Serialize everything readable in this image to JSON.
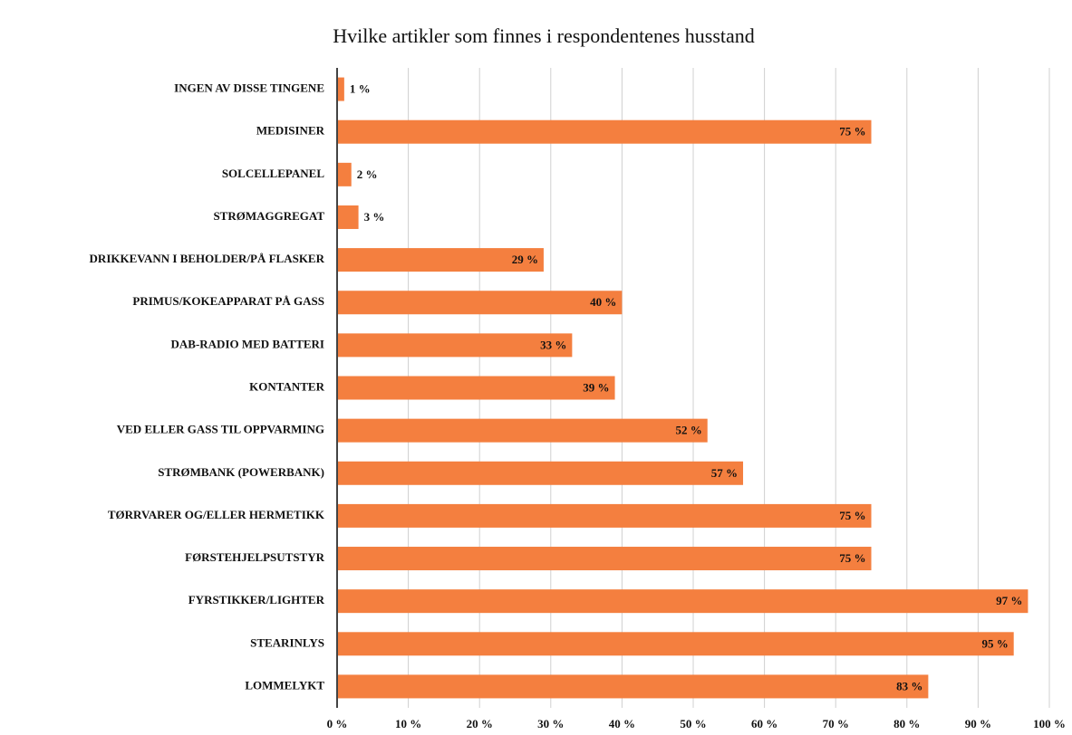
{
  "chart_data": {
    "type": "bar",
    "orientation": "horizontal",
    "title": "Hvilke artikler som finnes i respondentenes husstand",
    "categories": [
      "INGEN AV DISSE TINGENE",
      "MEDISINER",
      "SOLCELLEPANEL",
      "STRØMAGGREGAT",
      "DRIKKEVANN I BEHOLDER/PÅ FLASKER",
      "PRIMUS/KOKEAPPARAT PÅ GASS",
      "DAB-RADIO MED BATTERI",
      "KONTANTER",
      "VED ELLER GASS TIL OPPVARMING",
      "STRØMBANK (POWERBANK)",
      "TØRRVARER OG/ELLER HERMETIKK",
      "FØRSTEHJELPSUTSTYR",
      "FYRSTIKKER/LIGHTER",
      "STEARINLYS",
      "LOMMELYKT"
    ],
    "values": [
      1,
      75,
      2,
      3,
      29,
      40,
      33,
      39,
      52,
      57,
      75,
      75,
      97,
      95,
      83
    ],
    "value_labels": [
      "1 %",
      "75 %",
      "2 %",
      "3 %",
      "29 %",
      "40 %",
      "33 %",
      "39 %",
      "52 %",
      "57 %",
      "75 %",
      "75 %",
      "97 %",
      "95 %",
      "83 %"
    ],
    "color": "#f47f3f",
    "xlim": [
      0,
      100
    ],
    "xticks": [
      {
        "value": 0,
        "label": "0 %"
      },
      {
        "value": 10,
        "label": "10 %"
      },
      {
        "value": 20,
        "label": "20 %"
      },
      {
        "value": 30,
        "label": "30 %"
      },
      {
        "value": 40,
        "label": "40 %"
      },
      {
        "value": 50,
        "label": "50 %"
      },
      {
        "value": 60,
        "label": "60 %"
      },
      {
        "value": 70,
        "label": "70 %"
      },
      {
        "value": 80,
        "label": "80 %"
      },
      {
        "value": 90,
        "label": "90 %"
      },
      {
        "value": 100,
        "label": "100 %"
      }
    ],
    "grid": true
  }
}
